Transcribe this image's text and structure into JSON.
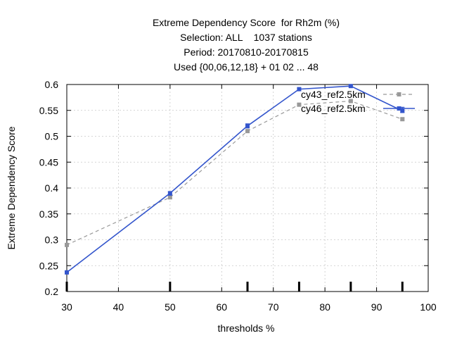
{
  "chart_data": {
    "type": "line",
    "title_lines": [
      "Extreme Dependency Score  for Rh2m (%)",
      "Selection: ALL    1037 stations",
      "Period: 20170810-20170815",
      "Used {00,06,12,18} + 01 02 ... 48"
    ],
    "xlabel": "thresholds %",
    "ylabel": "Extreme Dependency Score",
    "xlim": [
      30,
      100
    ],
    "ylim": [
      0.2,
      0.6
    ],
    "x_ticks": [
      30,
      40,
      50,
      60,
      70,
      80,
      90,
      100
    ],
    "x_tick_labels": [
      "30",
      "40",
      "50",
      "60",
      "70",
      "80",
      "90",
      "100"
    ],
    "y_ticks": [
      0.2,
      0.25,
      0.3,
      0.35,
      0.4,
      0.45,
      0.5,
      0.55,
      0.6
    ],
    "y_tick_labels": [
      "0.2",
      "0.25",
      "0.3",
      "0.35",
      "0.4",
      "0.45",
      "0.5",
      "0.55",
      "0.6"
    ],
    "threshold_marks": [
      30,
      50,
      65,
      75,
      85,
      95
    ],
    "grid": true,
    "legend_position": "top-right",
    "series": [
      {
        "name": "cy43_ref2.5km",
        "color": "#999999",
        "style": "dashed",
        "x": [
          30,
          50,
          65,
          75,
          85,
          95
        ],
        "y": [
          0.29,
          0.382,
          0.51,
          0.561,
          0.568,
          0.533
        ],
        "error_low": [
          0.29,
          0.38,
          0.508,
          0.559,
          0.566,
          0.531
        ],
        "error_high": [
          0.29,
          0.384,
          0.512,
          0.563,
          0.57,
          0.535
        ]
      },
      {
        "name": "cy46_ref2.5km",
        "color": "#3355cc",
        "style": "solid",
        "x": [
          30,
          50,
          65,
          75,
          85,
          95
        ],
        "y": [
          0.237,
          0.39,
          0.52,
          0.591,
          0.597,
          0.549
        ],
        "error_low": [
          0.234,
          0.386,
          0.516,
          0.589,
          0.595,
          0.546
        ],
        "error_high": [
          0.24,
          0.393,
          0.524,
          0.593,
          0.599,
          0.556
        ]
      }
    ]
  }
}
